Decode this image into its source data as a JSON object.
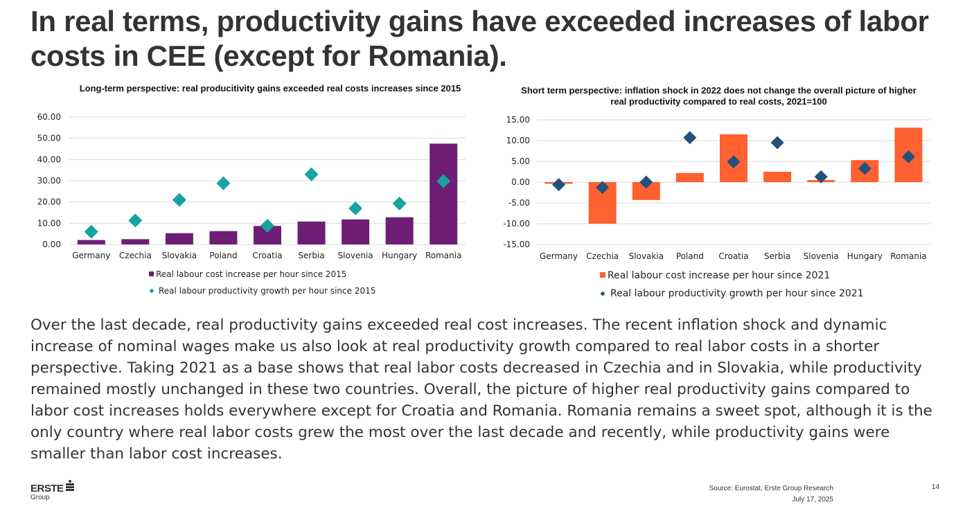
{
  "slide": {
    "title": "In real terms, productivity gains have exceeded increases of labor costs in CEE (except for Romania).",
    "body": "Over the last decade, real productivity gains exceeded real cost increases. The recent inflation shock and dynamic increase of nominal wages make us also look at real productivity growth compared to real labor costs in a shorter perspective. Taking 2021 as a base shows that real labor costs decreased in Czechia and in Slovakia, while productivity remained mostly unchanged in these two countries. Overall, the picture of higher real productivity gains compared to labor cost increases holds everywhere except for Croatia and Romania. Romania remains a sweet spot, although it is the only country where real labor costs grew the most over the last decade and recently, while productivity gains were smaller than labor cost increases.",
    "logo": {
      "main": "ERSTE",
      "sub": "Group",
      "icon": "erste-s-icon"
    },
    "source": "Source: Eurostat, Erste Group Research",
    "date": "July 17, 2025",
    "page_number": "14"
  },
  "chart_data": [
    {
      "type": "bar",
      "title": "Long-term perspective: real producitivity gains exceeded real costs increases since 2015",
      "xlabel": "",
      "ylabel": "",
      "ylim": [
        0,
        60
      ],
      "yticks": [
        0,
        10,
        20,
        30,
        40,
        50,
        60
      ],
      "ytick_labels": [
        "0.00",
        "10.00",
        "20.00",
        "30.00",
        "40.00",
        "50.00",
        "60.00"
      ],
      "grid": true,
      "legend_position": "bottom",
      "categories": [
        "Germany",
        "Czechia",
        "Slovakia",
        "Poland",
        "Croatia",
        "Serbia",
        "Slovenia",
        "Hungary",
        "Romania"
      ],
      "series": [
        {
          "name": "Real labour cost increase per hour since 2015",
          "kind": "bar",
          "color": "#6e1f75",
          "marker": "square",
          "values": [
            2.1,
            2.5,
            5.3,
            6.3,
            8.7,
            10.8,
            11.8,
            12.8,
            47.5
          ]
        },
        {
          "name": "Real labour productivity growth per hour since 2015",
          "kind": "marker",
          "color": "#17a3a0",
          "marker": "diamond",
          "values": [
            6.0,
            11.3,
            21.0,
            28.8,
            8.8,
            33.0,
            17.0,
            19.3,
            29.8
          ]
        }
      ]
    },
    {
      "type": "bar",
      "title": "Short term perspective: inflation shock in 2022 does not change the overall picture of higher real productivity compared to real costs, 2021=100",
      "xlabel": "",
      "ylabel": "",
      "ylim": [
        -15,
        15
      ],
      "yticks": [
        -15,
        -10,
        -5,
        0,
        5,
        10,
        15
      ],
      "ytick_labels": [
        "-15.00",
        "-10.00",
        "-5.00",
        "0.00",
        "5.00",
        "10.00",
        "15.00"
      ],
      "grid": true,
      "legend_position": "bottom",
      "categories": [
        "Germany",
        "Czechia",
        "Slovakia",
        "Poland",
        "Croatia",
        "Serbia",
        "Slovenia",
        "Hungary",
        "Romania"
      ],
      "series": [
        {
          "name": "Real labour cost increase per hour since 2021",
          "kind": "bar",
          "color": "#ff6130",
          "marker": "square",
          "values": [
            -0.4,
            -10.0,
            -4.3,
            2.2,
            11.5,
            2.5,
            0.5,
            5.3,
            13.1
          ]
        },
        {
          "name": "Real labour productivity growth per hour since 2021",
          "kind": "marker",
          "color": "#24517b",
          "marker": "diamond",
          "values": [
            -0.6,
            -1.3,
            0.0,
            10.7,
            4.9,
            9.5,
            1.3,
            3.3,
            6.1
          ]
        }
      ]
    }
  ]
}
